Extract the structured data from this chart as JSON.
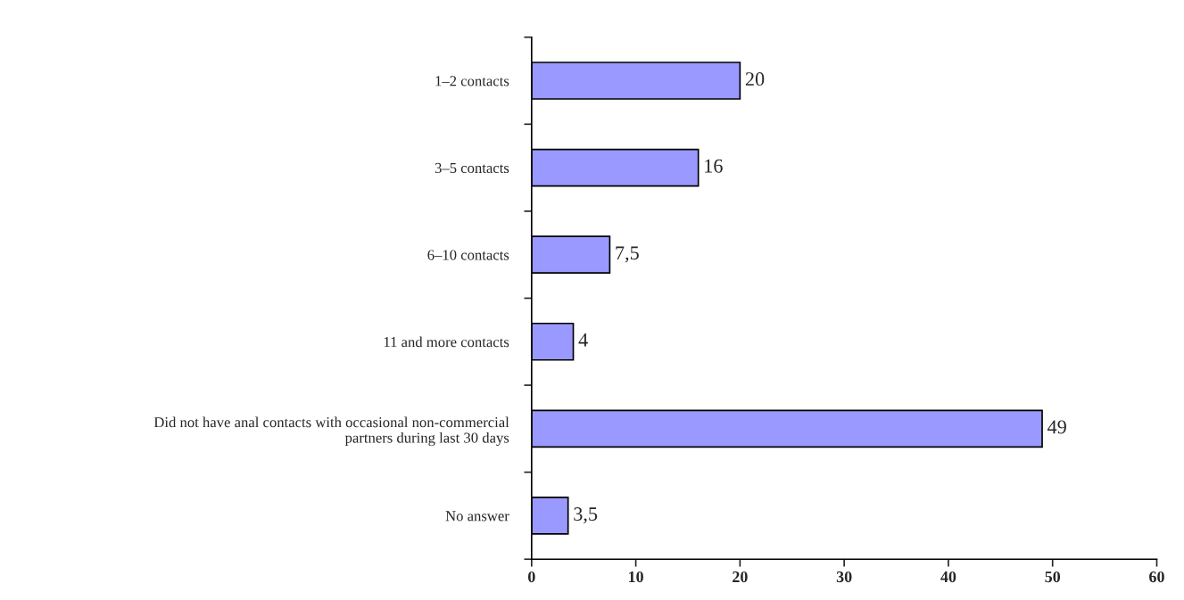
{
  "chart_data": {
    "type": "bar",
    "orientation": "horizontal",
    "categories": [
      "1–2 contacts",
      "3–5 contacts",
      "6–10 contacts",
      "11 and more contacts",
      "Did not have anal contacts with occasional non-commercial\npartners during last 30 days",
      "No answer"
    ],
    "values": [
      20,
      16,
      7.5,
      4,
      49,
      3.5
    ],
    "value_labels": [
      "20",
      "16",
      "7,5",
      "4",
      "49",
      "3,5"
    ],
    "color": "#9999ff",
    "xlim": [
      0,
      60
    ],
    "xticks": [
      0,
      10,
      20,
      30,
      40,
      50,
      60
    ],
    "grid": false
  }
}
